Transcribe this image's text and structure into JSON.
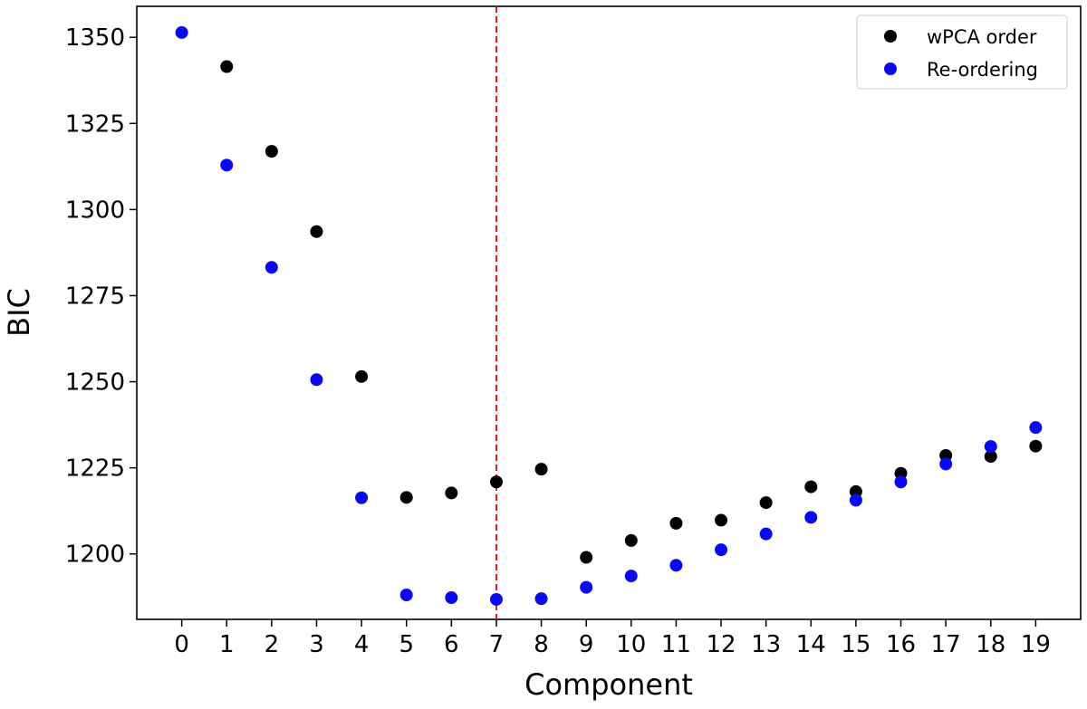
{
  "chart_data": {
    "type": "scatter",
    "title": "",
    "xlabel": "Component",
    "ylabel": "BIC",
    "xlim": [
      -1,
      20
    ],
    "ylim": [
      1181,
      1359
    ],
    "xticks": [
      0,
      1,
      2,
      3,
      4,
      5,
      6,
      7,
      8,
      9,
      10,
      11,
      12,
      13,
      14,
      15,
      16,
      17,
      18,
      19
    ],
    "yticks": [
      1200,
      1225,
      1250,
      1275,
      1300,
      1325,
      1350
    ],
    "grid": false,
    "legend_position": "top-right",
    "vline": {
      "x": 7,
      "color": "#e8130c",
      "style": "dashed"
    },
    "series": [
      {
        "name": "wPCA order",
        "color": "#000000",
        "x": [
          1,
          2,
          3,
          4,
          5,
          6,
          7,
          8,
          9,
          10,
          11,
          12,
          13,
          14,
          15,
          16,
          17,
          18,
          19
        ],
        "y": [
          1341.5,
          1316.9,
          1293.6,
          1251.5,
          1216.4,
          1217.7,
          1220.9,
          1224.6,
          1199.0,
          1203.9,
          1208.9,
          1209.8,
          1214.9,
          1219.5,
          1218.1,
          1223.4,
          1228.6,
          1228.3,
          1231.3
        ]
      },
      {
        "name": "Re-ordering",
        "color": "#0a0af0",
        "x": [
          0,
          1,
          2,
          3,
          4,
          5,
          6,
          7,
          8,
          9,
          10,
          11,
          12,
          13,
          14,
          15,
          16,
          17,
          18,
          19
        ],
        "y": [
          1351.4,
          1312.9,
          1283.2,
          1250.6,
          1216.3,
          1188.1,
          1187.3,
          1186.8,
          1187.0,
          1190.3,
          1193.6,
          1196.7,
          1201.2,
          1205.8,
          1210.6,
          1215.6,
          1220.9,
          1226.1,
          1231.2,
          1236.7
        ]
      }
    ]
  }
}
